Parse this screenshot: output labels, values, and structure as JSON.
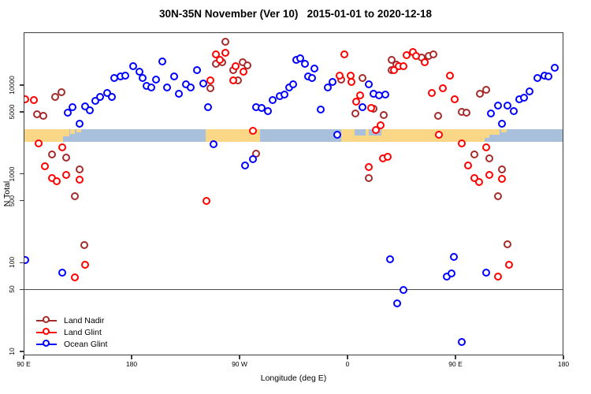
{
  "figure": {
    "background": "#ffffff",
    "border_color": "#3c3c3c"
  },
  "chart_data": {
    "type": "scatter",
    "title": "30N-35N November (Ver 10)   2015-01-01 to 2020-12-18",
    "xlabel": "Longitude (deg E)",
    "ylabel": "N Total",
    "x_axis": {
      "min": 90,
      "max": 540,
      "note": "longitude axis wraps eastward from 90E through 180, 90W, 0, 90E to 180",
      "ticks": [
        {
          "value": 90,
          "label": "90 E"
        },
        {
          "value": 180,
          "label": "180"
        },
        {
          "value": 270,
          "label": "90 W"
        },
        {
          "value": 360,
          "label": "0"
        },
        {
          "value": 450,
          "label": "90 E"
        },
        {
          "value": 540,
          "label": "180"
        }
      ]
    },
    "y_axis": {
      "scale": "log",
      "min": 9,
      "max": 39000,
      "ticks": [
        {
          "value": 10000,
          "label": "10000"
        },
        {
          "value": 5000,
          "label": "5000"
        },
        {
          "value": 1000,
          "label": "1000"
        },
        {
          "value": 500,
          "label": "500"
        },
        {
          "value": 100,
          "label": "100"
        },
        {
          "value": 50,
          "label": "50"
        },
        {
          "value": 10,
          "label": "10"
        }
      ]
    },
    "reference_line_value": 50,
    "map_strip": {
      "description": "land/ocean strip along 30N-35N drawn across the plot",
      "ocean_color": "#A9C0DD",
      "land_color": "#FAD687",
      "value_top": 3200,
      "value_bottom": 2300,
      "land_segments": [
        {
          "from": 90,
          "to": 123,
          "frac": 1
        },
        {
          "from": 123,
          "to": 128,
          "frac": 0.55
        },
        {
          "from": 129,
          "to": 133,
          "frac": 0.4
        },
        {
          "from": 134,
          "to": 138,
          "frac": 0.25
        },
        {
          "from": 242,
          "to": 287,
          "frac": 1
        },
        {
          "from": 355,
          "to": 474,
          "frac": 1
        },
        {
          "from": 474,
          "to": 478,
          "frac": 0.7
        },
        {
          "from": 478,
          "to": 487,
          "frac": 0.45
        },
        {
          "from": 488,
          "to": 493,
          "frac": 0.25
        }
      ],
      "ocean_notches": [
        {
          "from": 366,
          "to": 375,
          "frac": 0.5
        },
        {
          "from": 378,
          "to": 388,
          "frac": 0.5
        }
      ]
    },
    "series": [
      {
        "name": "Land Nadir",
        "color": "#A52A2A",
        "points": [
          [
            102,
            4600
          ],
          [
            107,
            4420
          ],
          [
            117,
            7210
          ],
          [
            122,
            8150
          ],
          [
            114,
            1620
          ],
          [
            126,
            1500
          ],
          [
            137,
            1100
          ],
          [
            133,
            550
          ],
          [
            141,
            155
          ],
          [
            246,
            9030
          ],
          [
            259,
            30000
          ],
          [
            251,
            17000
          ],
          [
            256,
            17700
          ],
          [
            265,
            14500
          ],
          [
            273,
            17700
          ],
          [
            277,
            16400
          ],
          [
            269,
            11100
          ],
          [
            284,
            1660
          ],
          [
            355,
            11300
          ],
          [
            367,
            4700
          ],
          [
            373,
            11800
          ],
          [
            378,
            880
          ],
          [
            382,
            5310
          ],
          [
            391,
            4510
          ],
          [
            397,
            18800
          ],
          [
            401,
            16700
          ],
          [
            397,
            14500
          ],
          [
            422,
            20000
          ],
          [
            428,
            20900
          ],
          [
            432,
            21700
          ],
          [
            436,
            4420
          ],
          [
            456,
            4890
          ],
          [
            460,
            4790
          ],
          [
            466,
            1620
          ],
          [
            471,
            7830
          ],
          [
            476,
            8670
          ],
          [
            479,
            1470
          ],
          [
            486,
            550
          ],
          [
            489,
            1100
          ],
          [
            494,
            158
          ]
        ]
      },
      {
        "name": "Land Glint",
        "color": "#FF0000",
        "points": [
          [
            92,
            6780
          ],
          [
            99,
            6650
          ],
          [
            103,
            2160
          ],
          [
            108,
            1190
          ],
          [
            114,
            880
          ],
          [
            118,
            810
          ],
          [
            123,
            1950
          ],
          [
            126,
            955
          ],
          [
            133,
            67
          ],
          [
            137,
            845
          ],
          [
            142,
            93
          ],
          [
            243,
            490
          ],
          [
            246,
            11100
          ],
          [
            251,
            21700
          ],
          [
            254,
            18800
          ],
          [
            259,
            22700
          ],
          [
            265,
            11100
          ],
          [
            267,
            16000
          ],
          [
            274,
            13900
          ],
          [
            282,
            3000
          ],
          [
            354,
            12500
          ],
          [
            358,
            21700
          ],
          [
            363,
            12500
          ],
          [
            364,
            10600
          ],
          [
            368,
            6380
          ],
          [
            371,
            7510
          ],
          [
            378,
            1170
          ],
          [
            380,
            5420
          ],
          [
            384,
            3060
          ],
          [
            388,
            3460
          ],
          [
            390,
            1470
          ],
          [
            394,
            1530
          ],
          [
            399,
            14500
          ],
          [
            403,
            16000
          ],
          [
            407,
            16000
          ],
          [
            410,
            21300
          ],
          [
            415,
            23100
          ],
          [
            418,
            20900
          ],
          [
            425,
            17700
          ],
          [
            431,
            7990
          ],
          [
            437,
            2700
          ],
          [
            440,
            9030
          ],
          [
            446,
            12500
          ],
          [
            450,
            6780
          ],
          [
            456,
            2160
          ],
          [
            461,
            1220
          ],
          [
            466,
            880
          ],
          [
            470,
            790
          ],
          [
            476,
            1950
          ],
          [
            479,
            955
          ],
          [
            486,
            68
          ],
          [
            489,
            860
          ],
          [
            495,
            93
          ]
        ]
      },
      {
        "name": "Ocean Glint",
        "color": "#0000FF",
        "points": [
          [
            92,
            105
          ],
          [
            123,
            76
          ],
          [
            127,
            4790
          ],
          [
            131,
            5530
          ],
          [
            142,
            5650
          ],
          [
            146,
            5100
          ],
          [
            137,
            3600
          ],
          [
            150,
            6510
          ],
          [
            154,
            7210
          ],
          [
            160,
            7990
          ],
          [
            164,
            7210
          ],
          [
            166,
            11800
          ],
          [
            171,
            12300
          ],
          [
            175,
            12500
          ],
          [
            182,
            16000
          ],
          [
            187,
            13900
          ],
          [
            190,
            11800
          ],
          [
            193,
            9600
          ],
          [
            197,
            9220
          ],
          [
            201,
            11300
          ],
          [
            206,
            18100
          ],
          [
            210,
            9220
          ],
          [
            216,
            12300
          ],
          [
            220,
            7830
          ],
          [
            226,
            10000
          ],
          [
            230,
            9220
          ],
          [
            235,
            14500
          ],
          [
            240,
            10200
          ],
          [
            244,
            5530
          ],
          [
            249,
            2120
          ],
          [
            275,
            1220
          ],
          [
            282,
            1440
          ],
          [
            284,
            5530
          ],
          [
            289,
            5420
          ],
          [
            294,
            4990
          ],
          [
            298,
            6650
          ],
          [
            304,
            7360
          ],
          [
            308,
            7670
          ],
          [
            312,
            9220
          ],
          [
            315,
            10000
          ],
          [
            318,
            18800
          ],
          [
            321,
            19600
          ],
          [
            325,
            17000
          ],
          [
            328,
            12300
          ],
          [
            331,
            11800
          ],
          [
            333,
            15000
          ],
          [
            338,
            5200
          ],
          [
            344,
            9220
          ],
          [
            348,
            10600
          ],
          [
            352,
            2700
          ],
          [
            373,
            5530
          ],
          [
            378,
            10000
          ],
          [
            382,
            7830
          ],
          [
            387,
            7510
          ],
          [
            392,
            7670
          ],
          [
            396,
            107
          ],
          [
            402,
            34
          ],
          [
            407,
            49
          ],
          [
            443,
            68
          ],
          [
            447,
            74
          ],
          [
            449,
            114
          ],
          [
            456,
            12.5
          ],
          [
            476,
            76
          ],
          [
            480,
            4700
          ],
          [
            486,
            5750
          ],
          [
            489,
            3600
          ],
          [
            494,
            5750
          ],
          [
            499,
            4990
          ],
          [
            504,
            6780
          ],
          [
            508,
            7060
          ],
          [
            512,
            8320
          ],
          [
            519,
            11800
          ],
          [
            525,
            12500
          ],
          [
            528,
            12300
          ],
          [
            533,
            15400
          ]
        ]
      }
    ],
    "legend": {
      "position": "bottom-left",
      "items": [
        {
          "label": "Land Nadir",
          "color": "#A52A2A"
        },
        {
          "label": "Land Glint",
          "color": "#FF0000"
        },
        {
          "label": "Ocean Glint",
          "color": "#0000FF"
        }
      ]
    }
  }
}
